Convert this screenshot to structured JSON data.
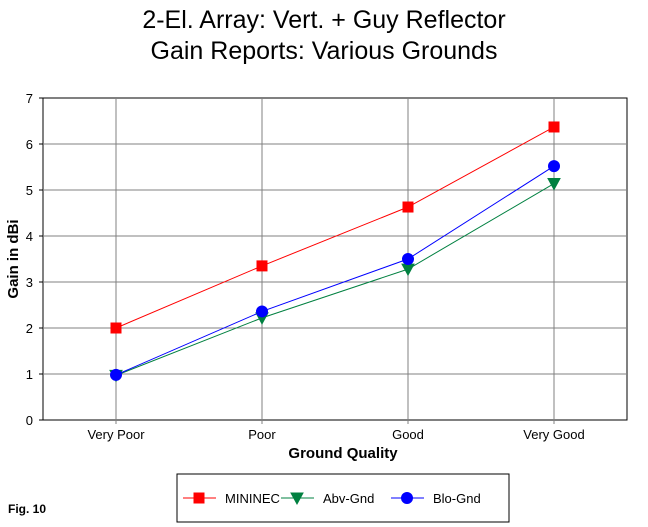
{
  "figure_label": "Fig. 10",
  "chart_data": {
    "type": "line",
    "title_lines": [
      "2-El. Array:  Vert. + Guy Reflector",
      "Gain Reports:  Various Grounds"
    ],
    "xlabel": "Ground Quality",
    "ylabel": "Gain in dBi",
    "categories": [
      "Very Poor",
      "Poor",
      "Good",
      "Very Good"
    ],
    "ylim": [
      0,
      7
    ],
    "yticks": [
      0,
      1,
      2,
      3,
      4,
      5,
      6,
      7
    ],
    "grid": true,
    "legend_position": "bottom",
    "plot_background": "#ffffff",
    "grid_color": "#808080",
    "series": [
      {
        "name": "MININEC",
        "color": "#ff0000",
        "marker": "square",
        "values": [
          2.0,
          3.35,
          4.63,
          6.37
        ]
      },
      {
        "name": "Abv-Gnd",
        "color": "#008040",
        "marker": "triangle-down",
        "values": [
          0.97,
          2.22,
          3.28,
          5.14
        ]
      },
      {
        "name": "Blo-Gnd",
        "color": "#0000ff",
        "marker": "circle",
        "values": [
          0.98,
          2.36,
          3.5,
          5.52
        ]
      }
    ]
  }
}
